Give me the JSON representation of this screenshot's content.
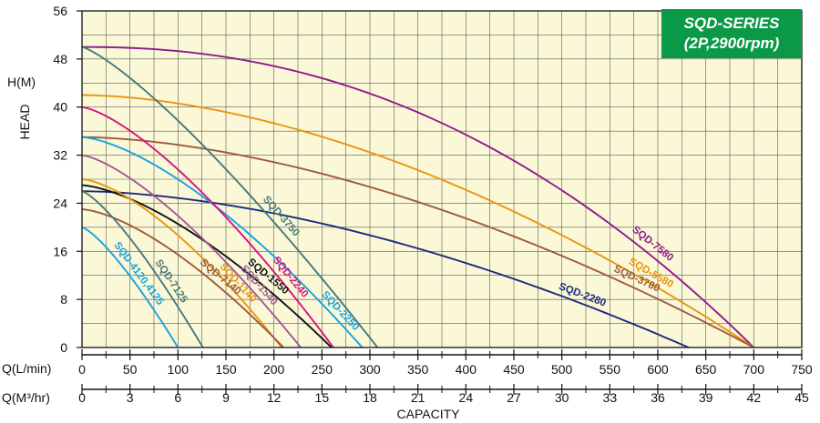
{
  "badge": {
    "line1": "SQD-SERIES",
    "line2": "(2P,2900rpm)"
  },
  "labels": {
    "y_axis_title": "HEAD",
    "y_axis_unit": "H(M)",
    "x_row1_label": "Q(L/min)",
    "x_row2_label": "Q(M³/hr)",
    "x_axis_title": "CAPACITY"
  },
  "colors": {
    "plot_background": "#fbf8d8",
    "grid": "#5b5b52",
    "badge": "#0a9a47"
  },
  "chart_data": {
    "type": "line",
    "title": "",
    "xlabel": "CAPACITY",
    "ylabel": "HEAD",
    "xlim": [
      0,
      750
    ],
    "ylim": [
      0,
      56
    ],
    "x_ticks_lmin": [
      "0",
      "50",
      "100",
      "150",
      "200",
      "250",
      "300",
      "350",
      "400",
      "450",
      "500",
      "550",
      "600",
      "650",
      "700",
      "750"
    ],
    "x_ticks_m3hr": [
      "0",
      "3",
      "6",
      "9",
      "12",
      "15",
      "18",
      "21",
      "24",
      "27",
      "30",
      "33",
      "36",
      "39",
      "42",
      "45"
    ],
    "y_ticks": [
      "0",
      "8",
      "16",
      "24",
      "32",
      "40",
      "48",
      "56"
    ],
    "grid": true,
    "series": [
      {
        "name": "SQD-7580",
        "color": "#8e1a8a",
        "shutoff_head": 50,
        "max_flow": 700,
        "shape": 2.2
      },
      {
        "name": "SQD-5580",
        "color": "#e8960c",
        "shutoff_head": 42,
        "max_flow": 700,
        "shape": 1.75
      },
      {
        "name": "SQD-3780",
        "color": "#9e5a3a",
        "shutoff_head": 35,
        "max_flow": 700,
        "shape": 1.7
      },
      {
        "name": "SQD-2280",
        "color": "#1a2a7e",
        "shutoff_head": 26,
        "max_flow": 632,
        "shape": 1.7
      },
      {
        "name": "SQD-3750",
        "color": "#4a7878",
        "shutoff_head": 50,
        "max_flow": 308,
        "shape": 1.25
      },
      {
        "name": "SQD-2250",
        "color": "#17a3de",
        "shutoff_head": 35,
        "max_flow": 292,
        "shape": 1.5
      },
      {
        "name": "SQD-2240",
        "color": "#d8127e",
        "shutoff_head": 40,
        "max_flow": 262,
        "shape": 1.4
      },
      {
        "name": "SQD-1550",
        "color": "#111111",
        "shutoff_head": 27,
        "max_flow": 260,
        "shape": 1.5
      },
      {
        "name": "SQD-1540",
        "color": "#a05a96",
        "shutoff_head": 32,
        "max_flow": 228,
        "shape": 1.4
      },
      {
        "name": "SQD-1140",
        "color": "#e8960c",
        "shutoff_head": 28,
        "max_flow": 208,
        "shape": 1.5
      },
      {
        "name": "SQD-7140",
        "color": "#9e5a3a",
        "shutoff_head": 23,
        "max_flow": 210,
        "shape": 1.5
      },
      {
        "name": "SQD-7125",
        "color": "#4a7878",
        "shutoff_head": 26,
        "max_flow": 126,
        "shape": 1.3
      },
      {
        "name": "SQD-4120,4125",
        "color": "#17a3de",
        "shutoff_head": 20,
        "max_flow": 100,
        "shape": 1.3
      }
    ]
  }
}
